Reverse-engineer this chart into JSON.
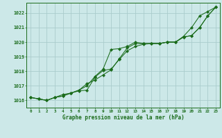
{
  "title": "Graphe pression niveau de la mer (hPa)",
  "background_color": "#cce8e8",
  "grid_color": "#aacccc",
  "line_color": "#1a6b1a",
  "marker_color": "#1a6b1a",
  "xlim": [
    -0.5,
    23.5
  ],
  "ylim": [
    1015.5,
    1022.7
  ],
  "yticks": [
    1016,
    1017,
    1018,
    1019,
    1020,
    1021,
    1022
  ],
  "xticks": [
    0,
    1,
    2,
    3,
    4,
    5,
    6,
    7,
    8,
    9,
    10,
    11,
    12,
    13,
    14,
    15,
    16,
    17,
    18,
    19,
    20,
    21,
    22,
    23
  ],
  "series1_x": [
    0,
    1,
    2,
    3,
    4,
    5,
    6,
    7,
    8,
    9,
    10,
    11,
    12,
    13,
    14,
    15,
    16,
    17,
    18,
    19,
    20,
    21,
    22,
    23
  ],
  "series1_y": [
    1016.2,
    1016.1,
    1016.0,
    1016.2,
    1016.4,
    1016.5,
    1016.7,
    1017.0,
    1017.65,
    1018.15,
    1019.5,
    1019.55,
    1019.7,
    1020.0,
    1019.9,
    1019.9,
    1019.9,
    1020.0,
    1020.0,
    1020.4,
    1021.0,
    1021.8,
    1022.1,
    1022.4
  ],
  "series2_x": [
    0,
    1,
    2,
    3,
    4,
    5,
    6,
    7,
    8,
    9,
    10,
    11,
    12,
    13,
    14,
    15,
    16,
    17,
    18,
    19,
    20,
    21,
    22,
    23
  ],
  "series2_y": [
    1016.2,
    1016.1,
    1016.0,
    1016.2,
    1016.3,
    1016.5,
    1016.7,
    1017.15,
    1017.4,
    1017.75,
    1018.1,
    1018.85,
    1019.6,
    1019.9,
    1019.9,
    1019.9,
    1019.9,
    1020.0,
    1020.0,
    1020.35,
    1020.45,
    1021.0,
    1021.8,
    1022.4
  ],
  "series3_x": [
    0,
    1,
    2,
    3,
    4,
    5,
    6,
    7,
    8,
    9,
    10,
    11,
    12,
    13,
    14,
    15,
    16,
    17,
    18,
    19,
    20,
    21,
    22,
    23
  ],
  "series3_y": [
    1016.2,
    1016.1,
    1016.0,
    1016.2,
    1016.3,
    1016.5,
    1016.65,
    1016.7,
    1017.6,
    1018.05,
    1018.15,
    1018.8,
    1019.4,
    1019.7,
    1019.85,
    1019.9,
    1019.9,
    1020.0,
    1020.0,
    1020.35,
    1020.45,
    1021.0,
    1021.8,
    1022.4
  ]
}
